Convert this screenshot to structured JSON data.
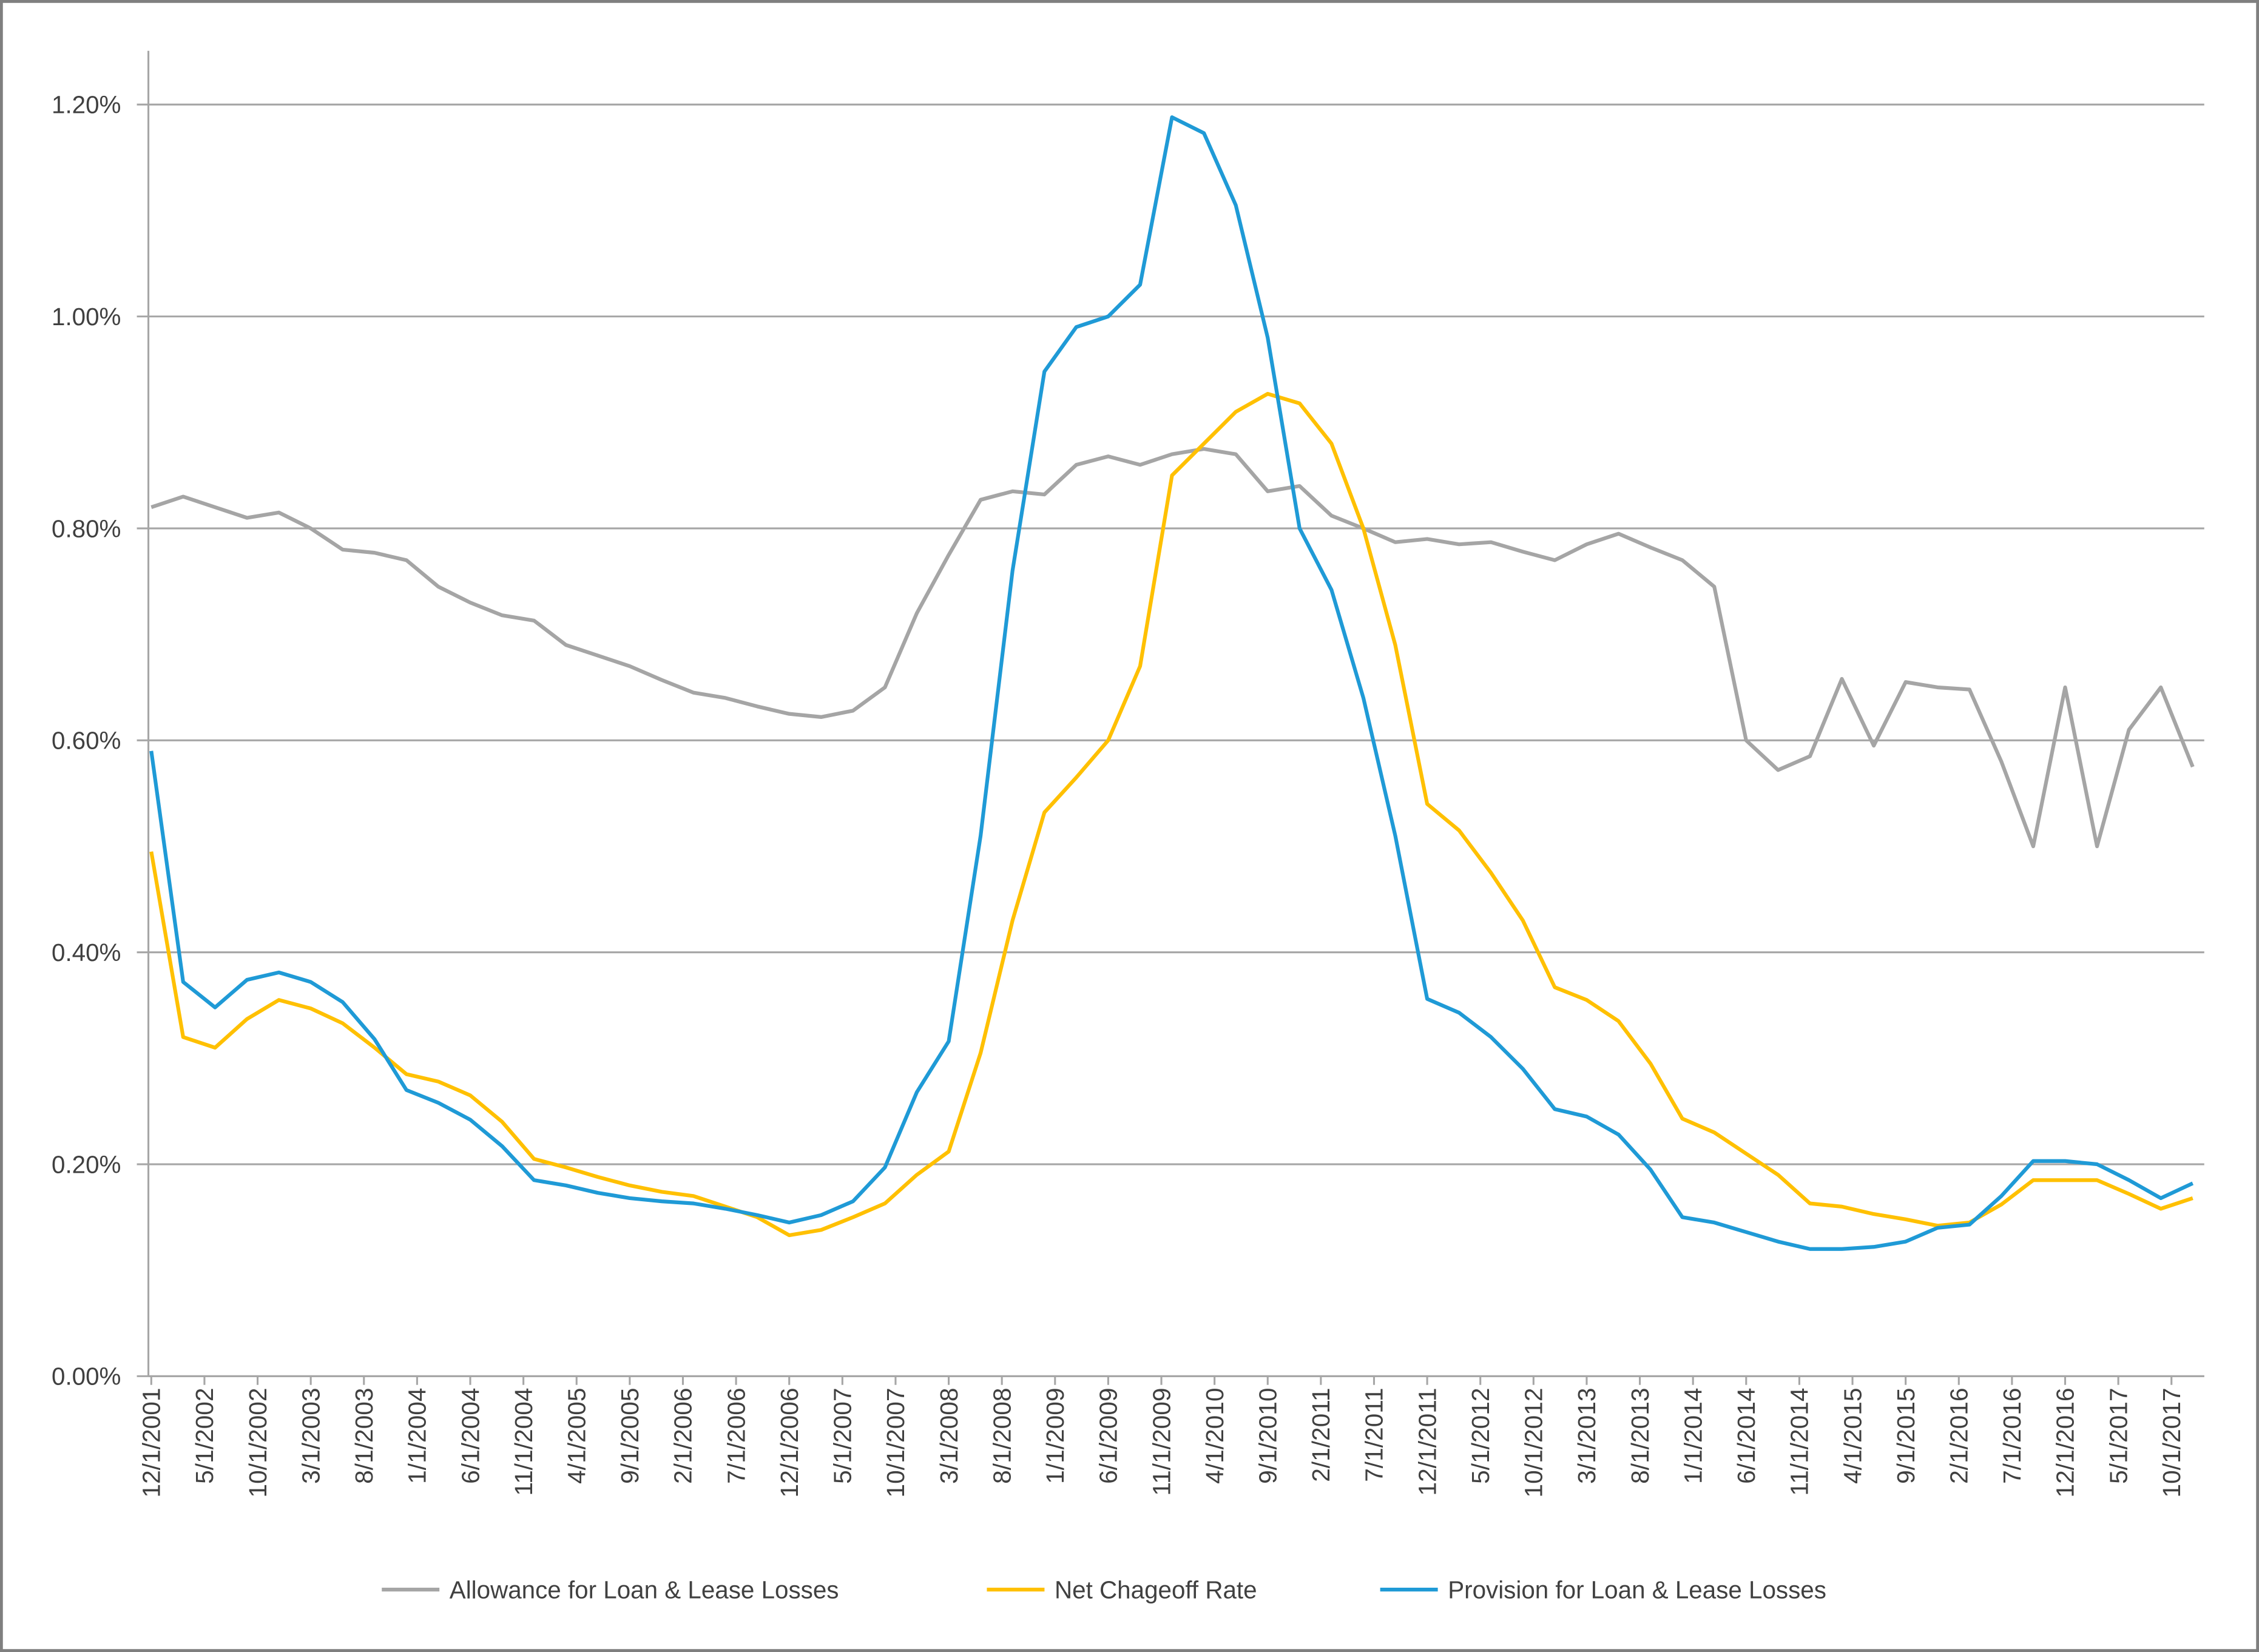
{
  "chart_data": {
    "type": "line",
    "x": [
      "12/1/2001",
      "3/1/2002",
      "6/1/2002",
      "9/1/2002",
      "12/1/2002",
      "3/1/2003",
      "6/1/2003",
      "9/1/2003",
      "12/1/2003",
      "3/1/2004",
      "6/1/2004",
      "9/1/2004",
      "12/1/2004",
      "3/1/2005",
      "6/1/2005",
      "9/1/2005",
      "12/1/2005",
      "3/1/2006",
      "6/1/2006",
      "9/1/2006",
      "12/1/2006",
      "3/1/2007",
      "6/1/2007",
      "9/1/2007",
      "12/1/2007",
      "3/1/2008",
      "6/1/2008",
      "9/1/2008",
      "12/1/2008",
      "3/1/2009",
      "6/1/2009",
      "9/1/2009",
      "12/1/2009",
      "3/1/2010",
      "6/1/2010",
      "9/1/2010",
      "12/1/2010",
      "3/1/2011",
      "6/1/2011",
      "9/1/2011",
      "12/1/2011",
      "3/1/2012",
      "6/1/2012",
      "9/1/2012",
      "12/1/2012",
      "3/1/2013",
      "6/1/2013",
      "9/1/2013",
      "12/1/2013",
      "3/1/2014",
      "6/1/2014",
      "9/1/2014",
      "12/1/2014",
      "3/1/2015",
      "6/1/2015",
      "9/1/2015",
      "12/1/2015",
      "3/1/2016",
      "6/1/2016",
      "9/1/2016",
      "12/1/2016",
      "3/1/2017",
      "6/1/2017",
      "9/1/2017",
      "12/1/2017"
    ],
    "xlim": [
      "12/1/2001",
      "12/1/2017"
    ],
    "xticks": [
      "12/1/2001",
      "5/1/2002",
      "10/1/2002",
      "3/1/2003",
      "8/1/2003",
      "1/1/2004",
      "6/1/2004",
      "11/1/2004",
      "4/1/2005",
      "9/1/2005",
      "2/1/2006",
      "7/1/2006",
      "12/1/2006",
      "5/1/2007",
      "10/1/2007",
      "3/1/2008",
      "8/1/2008",
      "1/1/2009",
      "6/1/2009",
      "11/1/2009",
      "4/1/2010",
      "9/1/2010",
      "2/1/2011",
      "7/1/2011",
      "12/1/2011",
      "5/1/2012",
      "10/1/2012",
      "3/1/2013",
      "8/1/2013",
      "1/1/2014",
      "6/1/2014",
      "11/1/2014",
      "4/1/2015",
      "9/1/2015",
      "2/1/2016",
      "7/1/2016",
      "12/1/2016",
      "5/1/2017",
      "10/1/2017"
    ],
    "ylim": [
      0,
      1.2
    ],
    "yticks": [
      {
        "value": 0,
        "label": "0.00%"
      },
      {
        "value": 0.2,
        "label": "0.20%"
      },
      {
        "value": 0.4,
        "label": "0.40%"
      },
      {
        "value": 0.6,
        "label": "0.60%"
      },
      {
        "value": 0.8,
        "label": "0.80%"
      },
      {
        "value": 1.0,
        "label": "1.00%"
      },
      {
        "value": 1.2,
        "label": "1.20%"
      }
    ],
    "grid": true,
    "legend": "bottom",
    "series": [
      {
        "name": "Allowance for Loan & Lease Losses",
        "color": "#a5a5a5",
        "values": [
          0.82,
          0.83,
          0.82,
          0.81,
          0.815,
          0.8,
          0.78,
          0.777,
          0.77,
          0.745,
          0.73,
          0.718,
          0.713,
          0.69,
          0.68,
          0.67,
          0.657,
          0.645,
          0.64,
          0.632,
          0.625,
          0.622,
          0.628,
          0.65,
          0.72,
          0.775,
          0.827,
          0.835,
          0.832,
          0.86,
          0.868,
          0.86,
          0.87,
          0.875,
          0.87,
          0.835,
          0.84,
          0.812,
          0.8,
          0.787,
          0.79,
          0.785,
          0.787,
          0.778,
          0.77,
          0.785,
          0.795,
          0.782,
          0.77,
          0.745,
          0.6,
          0.572,
          0.585,
          0.658,
          0.595,
          0.655,
          0.65,
          0.648,
          0.58,
          0.5,
          0.65,
          0.5,
          0.61,
          0.65,
          0.575
        ]
      },
      {
        "name": "Net Chageoff Rate",
        "color": "#ffc000",
        "values": [
          0.495,
          0.32,
          0.31,
          0.337,
          0.355,
          0.347,
          0.333,
          0.31,
          0.285,
          0.278,
          0.265,
          0.24,
          0.205,
          0.197,
          0.188,
          0.18,
          0.174,
          0.17,
          0.16,
          0.15,
          0.133,
          0.138,
          0.15,
          0.163,
          0.19,
          0.212,
          0.305,
          0.43,
          0.532,
          0.565,
          0.6,
          0.67,
          0.85,
          0.88,
          0.91,
          0.927,
          0.918,
          0.88,
          0.8,
          0.69,
          0.54,
          0.515,
          0.475,
          0.43,
          0.367,
          0.355,
          0.335,
          0.295,
          0.243,
          0.23,
          0.21,
          0.19,
          0.163,
          0.16,
          0.153,
          0.148,
          0.142,
          0.145,
          0.162,
          0.185,
          0.185,
          0.185,
          0.172,
          0.158,
          0.168
        ]
      },
      {
        "name": "Provision for Loan & Lease Losses",
        "color": "#1f9ad6",
        "values": [
          0.59,
          0.372,
          0.348,
          0.374,
          0.381,
          0.372,
          0.353,
          0.318,
          0.27,
          0.258,
          0.242,
          0.217,
          0.185,
          0.18,
          0.173,
          0.168,
          0.165,
          0.163,
          0.158,
          0.152,
          0.145,
          0.152,
          0.165,
          0.197,
          0.268,
          0.316,
          0.51,
          0.76,
          0.948,
          0.99,
          1.0,
          1.03,
          1.188,
          1.173,
          1.105,
          0.98,
          0.8,
          0.742,
          0.64,
          0.51,
          0.356,
          0.343,
          0.32,
          0.29,
          0.252,
          0.245,
          0.228,
          0.195,
          0.15,
          0.145,
          0.136,
          0.127,
          0.12,
          0.12,
          0.122,
          0.127,
          0.14,
          0.143,
          0.17,
          0.203,
          0.203,
          0.2,
          0.185,
          0.168,
          0.182
        ]
      }
    ]
  }
}
